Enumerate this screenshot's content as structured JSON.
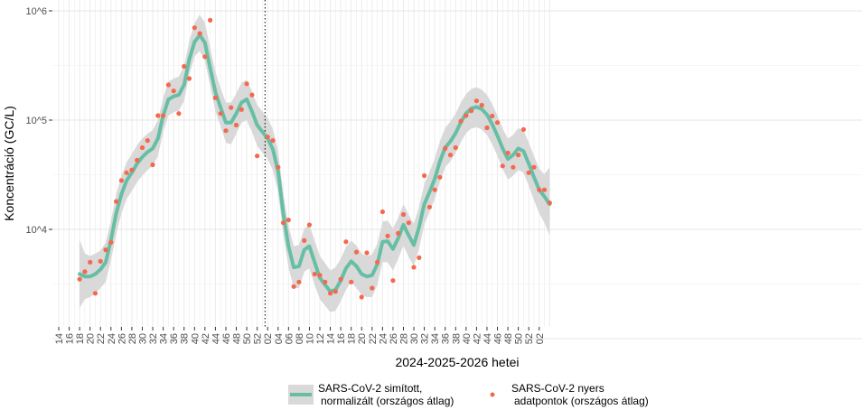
{
  "chart_data": {
    "type": "line",
    "title": "",
    "xlabel": "2024-2025-2026 hetei",
    "ylabel": "Koncentráció (GC/L)",
    "y_scale": "log10",
    "ylim": [
      1800,
      1000000
    ],
    "xlim": [
      "2024-W13",
      "2026-W03"
    ],
    "grid": true,
    "legend_position": "bottom",
    "vertical_line_at": "2025-W01",
    "y_ticks": [
      {
        "value": 10000,
        "label": "10^4"
      },
      {
        "value": 100000,
        "label": "10^5"
      },
      {
        "value": 1000000,
        "label": "10^6"
      }
    ],
    "x_tick_labels": [
      "14",
      "16",
      "18",
      "20",
      "22",
      "24",
      "26",
      "28",
      "30",
      "32",
      "34",
      "36",
      "38",
      "40",
      "42",
      "44",
      "46",
      "48",
      "50",
      "52",
      "02",
      "04",
      "06",
      "08",
      "10",
      "12",
      "14",
      "16",
      "18",
      "20",
      "22",
      "24",
      "26",
      "28",
      "30",
      "32",
      "34",
      "36",
      "38",
      "40",
      "42",
      "44",
      "46",
      "48",
      "50",
      "52",
      "02"
    ],
    "x": [
      "2024-W18",
      "2024-W19",
      "2024-W20",
      "2024-W21",
      "2024-W22",
      "2024-W23",
      "2024-W24",
      "2024-W25",
      "2024-W26",
      "2024-W27",
      "2024-W28",
      "2024-W29",
      "2024-W30",
      "2024-W31",
      "2024-W32",
      "2024-W33",
      "2024-W34",
      "2024-W35",
      "2024-W36",
      "2024-W37",
      "2024-W38",
      "2024-W39",
      "2024-W40",
      "2024-W41",
      "2024-W42",
      "2024-W43",
      "2024-W44",
      "2024-W45",
      "2024-W46",
      "2024-W47",
      "2024-W48",
      "2024-W49",
      "2024-W50",
      "2024-W51",
      "2024-W52",
      "2025-W01",
      "2025-W02",
      "2025-W03",
      "2025-W04",
      "2025-W05",
      "2025-W06",
      "2025-W07",
      "2025-W08",
      "2025-W09",
      "2025-W10",
      "2025-W11",
      "2025-W12",
      "2025-W13",
      "2025-W14",
      "2025-W15",
      "2025-W16",
      "2025-W17",
      "2025-W18",
      "2025-W19",
      "2025-W20",
      "2025-W21",
      "2025-W22",
      "2025-W23",
      "2025-W24",
      "2025-W25",
      "2025-W26",
      "2025-W27",
      "2025-W28",
      "2025-W29",
      "2025-W30",
      "2025-W31",
      "2025-W32",
      "2025-W33",
      "2025-W34",
      "2025-W35",
      "2025-W36",
      "2025-W37",
      "2025-W38",
      "2025-W39",
      "2025-W40",
      "2025-W41",
      "2025-W42",
      "2025-W43",
      "2025-W44",
      "2025-W45",
      "2025-W46",
      "2025-W47",
      "2025-W48",
      "2025-W49",
      "2025-W50",
      "2025-W51",
      "2025-W52",
      "2026-W01",
      "2026-W02",
      "2026-W03"
    ],
    "series": [
      {
        "name": "SARS-CoV-2 simított,\nnormalizált (országos átlag)",
        "kind": "smooth_line_with_band",
        "color": "#66bfa5",
        "band_color": "#d9d9d9",
        "values": [
          3900,
          3700,
          3700,
          3900,
          4300,
          5000,
          8000,
          14000,
          21000,
          28000,
          33000,
          40000,
          46000,
          51000,
          55000,
          68000,
          110000,
          155000,
          165000,
          170000,
          210000,
          360000,
          520000,
          600000,
          510000,
          300000,
          180000,
          130000,
          95000,
          95000,
          115000,
          145000,
          155000,
          120000,
          90000,
          68000,
          54000,
          34000,
          14000,
          7000,
          4500,
          4600,
          6500,
          7000,
          5000,
          3600,
          3100,
          2700,
          2800,
          3400,
          4400,
          5100,
          4600,
          3900,
          3700,
          3800,
          4800,
          7700,
          7800,
          6600,
          8300,
          11000,
          8800,
          7200,
          10500,
          17000,
          22000,
          29000,
          42000,
          56000,
          64000,
          76000,
          96000,
          115000,
          128000,
          132000,
          126000,
          112000,
          92000,
          72000,
          55000,
          44000,
          48000,
          55000,
          52000,
          40000,
          30000,
          23000,
          20000,
          17000
        ],
        "lower": [
          1900,
          2300,
          2400,
          2600,
          2900,
          3300,
          5200,
          9000,
          14000,
          19000,
          22500,
          27000,
          31000,
          35000,
          38000,
          47000,
          78000,
          110000,
          118000,
          122000,
          150000,
          260000,
          380000,
          430000,
          350000,
          205000,
          120000,
          88000,
          62000,
          60000,
          75000,
          95000,
          100000,
          78000,
          58000,
          44000,
          35000,
          22000,
          9000,
          4500,
          2900,
          2900,
          4100,
          4400,
          3100,
          2300,
          2000,
          1750,
          1800,
          2200,
          2800,
          3300,
          2900,
          2500,
          2400,
          2400,
          3100,
          5000,
          5000,
          4200,
          5400,
          7100,
          5600,
          4600,
          6700,
          11000,
          14500,
          19000,
          27500,
          37000,
          42000,
          50000,
          63000,
          76000,
          84000,
          86000,
          82000,
          73000,
          60000,
          47000,
          36000,
          28500,
          31000,
          35000,
          33000,
          25000,
          18500,
          14000,
          11500,
          8800
        ],
        "upper": [
          8000,
          6000,
          5700,
          6000,
          6400,
          7600,
          12000,
          21000,
          31000,
          41000,
          49000,
          59000,
          68000,
          75000,
          81000,
          100000,
          160000,
          225000,
          240000,
          250000,
          310000,
          530000,
          770000,
          920000,
          780000,
          460000,
          275000,
          195000,
          145000,
          145000,
          175000,
          220000,
          235000,
          182000,
          138000,
          104000,
          83000,
          52000,
          21500,
          10800,
          7000,
          7200,
          10200,
          11000,
          7900,
          5700,
          4900,
          4200,
          4500,
          5400,
          6900,
          7900,
          7100,
          6000,
          5700,
          5900,
          7400,
          11800,
          12000,
          10200,
          12800,
          17000,
          13600,
          11200,
          16200,
          26000,
          33500,
          44500,
          64000,
          85000,
          97000,
          115000,
          145000,
          173000,
          193000,
          200000,
          190000,
          170000,
          140000,
          110000,
          84000,
          67500,
          73500,
          84500,
          80500,
          62000,
          47000,
          36000,
          32000,
          37000
        ]
      },
      {
        "name": "SARS-CoV-2 nyers\nadatpontok (országos átlag)",
        "kind": "points",
        "color": "#f4694e",
        "values": [
          3500,
          4100,
          5000,
          2600,
          5100,
          6500,
          7600,
          18000,
          28000,
          33000,
          35000,
          43000,
          56000,
          65000,
          39000,
          110000,
          110000,
          210000,
          185000,
          115000,
          310000,
          240000,
          700000,
          620000,
          380000,
          820000,
          160000,
          115000,
          80000,
          130000,
          90000,
          125000,
          215000,
          170000,
          47000,
          70000,
          65000,
          37000,
          11500,
          12200,
          3000,
          3300,
          7900,
          11000,
          3900,
          3800,
          3300,
          2600,
          2700,
          3500,
          7700,
          3300,
          6200,
          2400,
          6100,
          2900,
          5000,
          14500,
          8700,
          3400,
          9200,
          13700,
          11500,
          4500,
          5500,
          31000,
          16000,
          23000,
          30000,
          55000,
          48000,
          56000,
          98000,
          110000,
          122000,
          150000,
          137000,
          85000,
          109000,
          95000,
          38000,
          50000,
          37000,
          48000,
          82000,
          33000,
          37000,
          23000,
          23000,
          17500
        ]
      }
    ]
  },
  "legend": {
    "smooth_label_line1": "SARS-CoV-2 simított,",
    "smooth_label_line2": "normalizált (országos átlag)",
    "raw_label_line1": "SARS-CoV-2 nyers",
    "raw_label_line2": "adatpontok (országos átlag)"
  }
}
